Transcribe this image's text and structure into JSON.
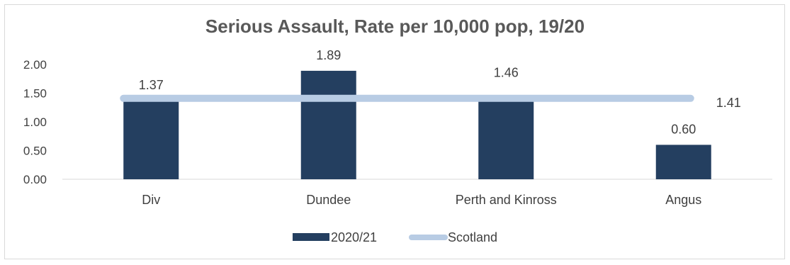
{
  "chart_data": {
    "type": "bar",
    "title": "Serious Assault, Rate per 10,000 pop, 19/20",
    "xlabel": "",
    "ylabel": "",
    "categories": [
      "Div",
      "Dundee",
      "Perth and Kinross",
      "Angus"
    ],
    "series": [
      {
        "name": "2020/21",
        "type": "bar",
        "values": [
          1.37,
          1.89,
          1.46,
          0.6
        ],
        "color": "#243f60"
      },
      {
        "name": "Scotland",
        "type": "line",
        "values": [
          1.41,
          1.41,
          1.41,
          1.41
        ],
        "color": "#b8cce4"
      }
    ],
    "data_labels": [
      "1.37",
      "1.89",
      "1.46",
      "0.60"
    ],
    "line_label": "1.41",
    "ylim": [
      0,
      2
    ],
    "y_ticks": [
      "0.00",
      "0.50",
      "1.00",
      "1.50",
      "2.00"
    ],
    "grid": false,
    "legend": "bottom"
  }
}
